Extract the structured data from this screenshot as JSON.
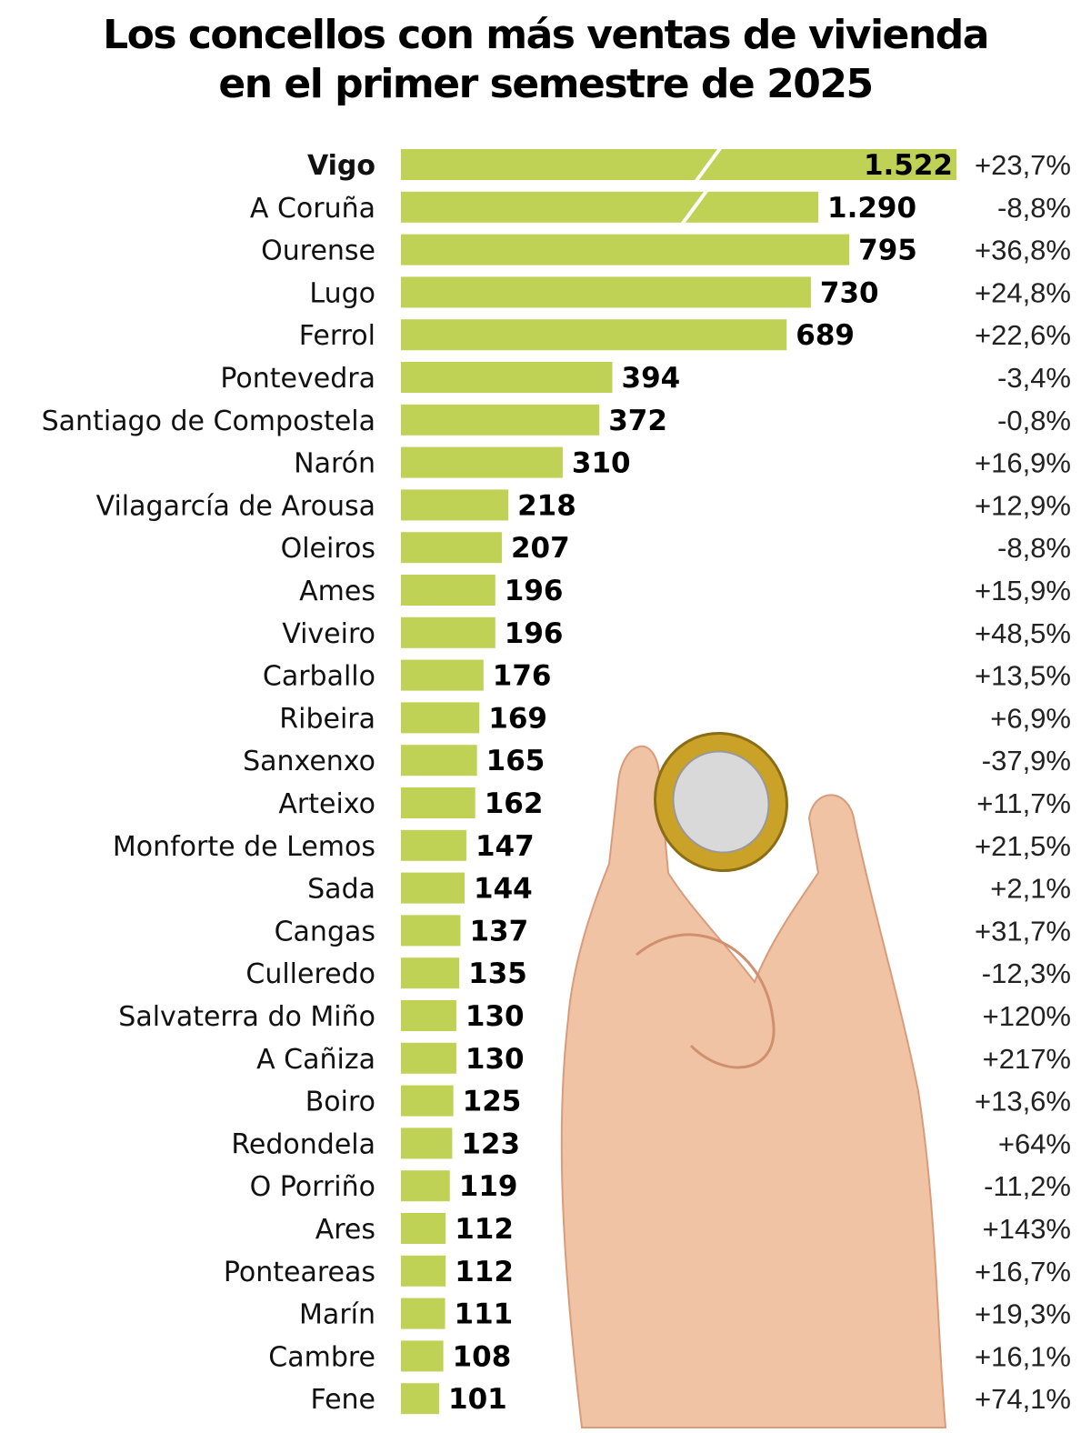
{
  "chart_data": {
    "type": "bar",
    "orientation": "horizontal",
    "title": "Los concellos con más ventas de vivienda en el primer semestre de 2025",
    "title_lines": [
      "Los concellos con más ventas de vivienda",
      "en el primer semestre de 2025"
    ],
    "bar_color": "#bfd255",
    "broken_bars": [
      "Vigo",
      "A Coruña"
    ],
    "grid": false,
    "categories": [
      "Vigo",
      "A Coruña",
      "Ourense",
      "Lugo",
      "Ferrol",
      "Pontevedra",
      "Santiago de Compostela",
      "Narón",
      "Vilagarcía de Arousa",
      "Oleiros",
      "Ames",
      "Viveiro",
      "Carballo",
      "Ribeira",
      "Sanxenxo",
      "Arteixo",
      "Monforte de Lemos",
      "Sada",
      "Cangas",
      "Culleredo",
      "Salvaterra do Miño",
      "A Cañiza",
      "Boiro",
      "Redondela",
      "O Porriño",
      "Ares",
      "Ponteareas",
      "Marín",
      "Cambre",
      "Fene"
    ],
    "values": [
      1522,
      1290,
      795,
      730,
      689,
      394,
      372,
      310,
      218,
      207,
      196,
      196,
      176,
      169,
      165,
      162,
      147,
      144,
      137,
      135,
      130,
      130,
      125,
      123,
      119,
      112,
      112,
      111,
      108,
      101
    ],
    "value_labels": [
      "1.522",
      "1.290",
      "795",
      "730",
      "689",
      "394",
      "372",
      "310",
      "218",
      "207",
      "196",
      "196",
      "176",
      "169",
      "165",
      "162",
      "147",
      "144",
      "137",
      "135",
      "130",
      "130",
      "125",
      "123",
      "119",
      "112",
      "112",
      "111",
      "108",
      "101"
    ],
    "change_labels": [
      "+23,7%",
      "-8,8%",
      "+36,8%",
      "+24,8%",
      "+22,6%",
      "-3,4%",
      "-0,8%",
      "+16,9%",
      "+12,9%",
      "-8,8%",
      "+15,9%",
      "+48,5%",
      "+13,5%",
      "+6,9%",
      "-37,9%",
      "+11,7%",
      "+21,5%",
      "+2,1%",
      "+31,7%",
      "-12,3%",
      "+120%",
      "+217%",
      "+13,6%",
      "+64%",
      "-11,2%",
      "+143%",
      "+16,7%",
      "+19,3%",
      "+16,1%",
      "+74,1%"
    ],
    "highlight": "Vigo",
    "illustration": "hand-holding-euro-coin"
  }
}
